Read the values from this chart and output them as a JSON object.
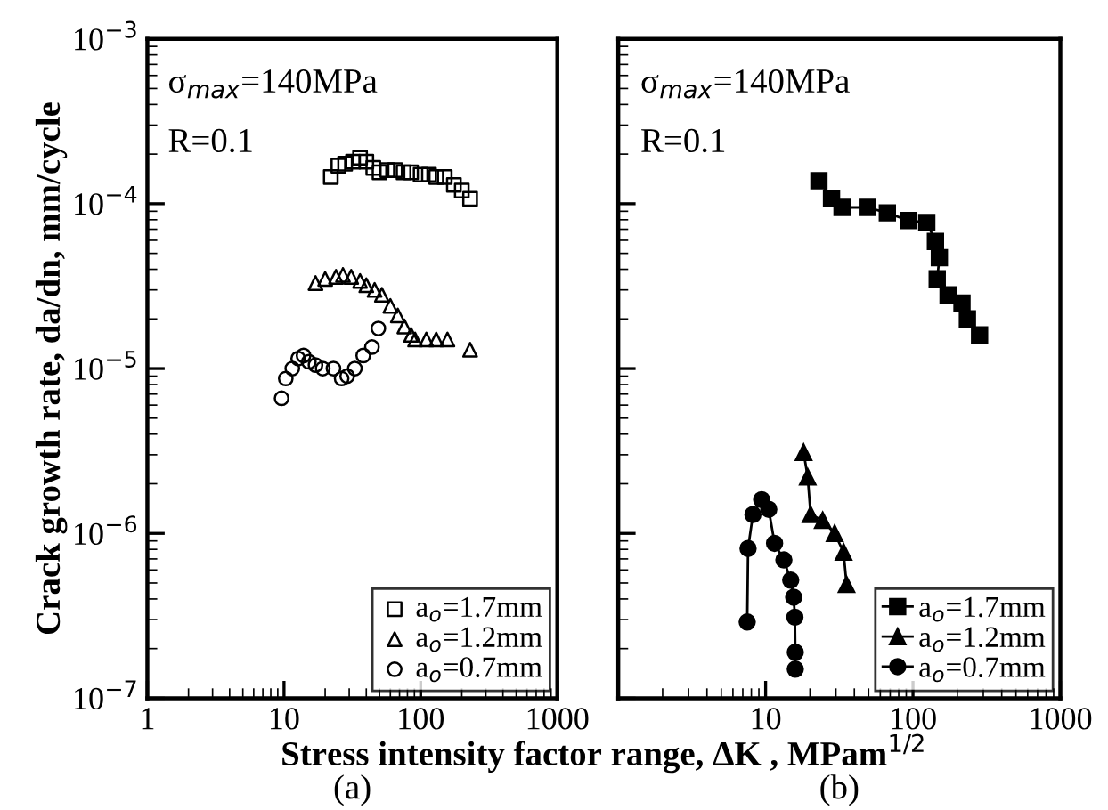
{
  "chart_data": [
    {
      "type": "scatter",
      "subtitle": "(a)",
      "xlabel": "Stress intensity factor range, ΔK , MPam$^{1/2}$",
      "ylabel": "Crack growth rate, da/dn, mm/cycle",
      "log": "xy",
      "xlim": [
        1,
        1000
      ],
      "ylim": [
        1e-07,
        0.001
      ],
      "xticks": [
        1,
        10,
        100,
        1000
      ],
      "yticks": [
        {
          "value": 1e-07,
          "label": "10$^{−7}$"
        },
        {
          "value": 1e-06,
          "label": "10$^{−6}$"
        },
        {
          "value": 1e-05,
          "label": "10$^{−5}$"
        },
        {
          "value": 0.0001,
          "label": "10$^{−4}$"
        },
        {
          "value": 0.001,
          "label": "10$^{−3}$"
        }
      ],
      "annotations": [
        "σ$_{max}$=140MPa",
        "R=0.1"
      ],
      "legend": "bottom right",
      "grid": false,
      "series": [
        {
          "name": "a$_{o}$=1.7mm",
          "color": "#000000",
          "marker": "square",
          "x": [
            22,
            25,
            28,
            32,
            36,
            40,
            45,
            50,
            57,
            65,
            75,
            85,
            100,
            115,
            130,
            150,
            175,
            200,
            230
          ],
          "values": [
            0.000145,
            0.00017,
            0.000175,
            0.00018,
            0.00019,
            0.00018,
            0.000165,
            0.000155,
            0.00016,
            0.00016,
            0.000155,
            0.000155,
            0.00015,
            0.00015,
            0.000145,
            0.000145,
            0.00013,
            0.00012,
            0.000107
          ]
        },
        {
          "name": "a$_{o}$=1.2mm",
          "color": "#000000",
          "marker": "triangle",
          "x": [
            17,
            20,
            24,
            27,
            31,
            36,
            40,
            46,
            52,
            60,
            68,
            76,
            85,
            91,
            110,
            130,
            157,
            230
          ],
          "values": [
            3.3e-05,
            3.5e-05,
            3.6e-05,
            3.7e-05,
            3.6e-05,
            3.4e-05,
            3.2e-05,
            3e-05,
            2.8e-05,
            2.4e-05,
            2.1e-05,
            1.8e-05,
            1.6e-05,
            1.5e-05,
            1.5e-05,
            1.5e-05,
            1.5e-05,
            1.3e-05
          ]
        },
        {
          "name": "a$_{o}$=0.7mm",
          "color": "#000000",
          "marker": "circle",
          "x": [
            9.6,
            10.3,
            11.5,
            12.7,
            13.9,
            15.2,
            17,
            19.2,
            23,
            26.4,
            29,
            33,
            38,
            44,
            49
          ],
          "values": [
            6.6e-06,
            8.7e-06,
            1e-05,
            1.15e-05,
            1.2e-05,
            1.1e-05,
            1.05e-05,
            1e-05,
            1e-05,
            8.7e-06,
            9e-06,
            1e-05,
            1.2e-05,
            1.35e-05,
            1.75e-05
          ]
        }
      ]
    },
    {
      "type": "line",
      "subtitle": "(b)",
      "log": "xy",
      "xlim": [
        1,
        1000
      ],
      "ylim": [
        1e-07,
        0.001
      ],
      "xticks": [
        10,
        100,
        1000
      ],
      "yticks": [
        {
          "value": 1e-07,
          "label": null
        },
        {
          "value": 1e-06,
          "label": null
        },
        {
          "value": 1e-05,
          "label": null
        },
        {
          "value": 0.0001,
          "label": null
        },
        {
          "value": 0.001,
          "label": null
        }
      ],
      "tick_labels": "x",
      "annotations": [
        "σ$_{max}$=140MPa",
        "R=0.1"
      ],
      "legend": "bottom right",
      "grid": false,
      "line_style": "solid",
      "series": [
        {
          "name": "a$_{o}$=1.7mm",
          "color": "#000000",
          "marker": "square",
          "x": [
            23,
            28,
            33,
            49,
            67,
            93,
            124,
            142,
            151,
            146,
            173,
            215,
            234,
            283
          ],
          "values": [
            0.000138,
            0.000108,
            9.5e-05,
            9.5e-05,
            8.8e-05,
            7.9e-05,
            7.7e-05,
            5.9e-05,
            4.7e-05,
            3.5e-05,
            2.8e-05,
            2.5e-05,
            2e-05,
            1.6e-05
          ]
        },
        {
          "name": "a$_{o}$=1.2mm",
          "color": "#000000",
          "marker": "triangle",
          "x": [
            18.1,
            19.3,
            20.2,
            24.4,
            29.4,
            33.8,
            35.4
          ],
          "values": [
            3.1e-06,
            2.2e-06,
            1.3e-06,
            1.2e-06,
            1e-06,
            7.7e-07,
            4.9e-07
          ]
        },
        {
          "name": "a$_{o}$=0.7mm",
          "color": "#000000",
          "marker": "circle",
          "x": [
            7.5,
            7.6,
            8.2,
            9.4,
            10.5,
            11.5,
            13.3,
            14.8,
            15.5,
            15.8,
            15.9,
            15.9
          ],
          "values": [
            2.9e-07,
            8.1e-07,
            1.3e-06,
            1.6e-06,
            1.4e-06,
            8.7e-07,
            6.9e-07,
            5.2e-07,
            4.1e-07,
            3.1e-07,
            1.9e-07,
            1.5e-07
          ]
        }
      ]
    }
  ]
}
